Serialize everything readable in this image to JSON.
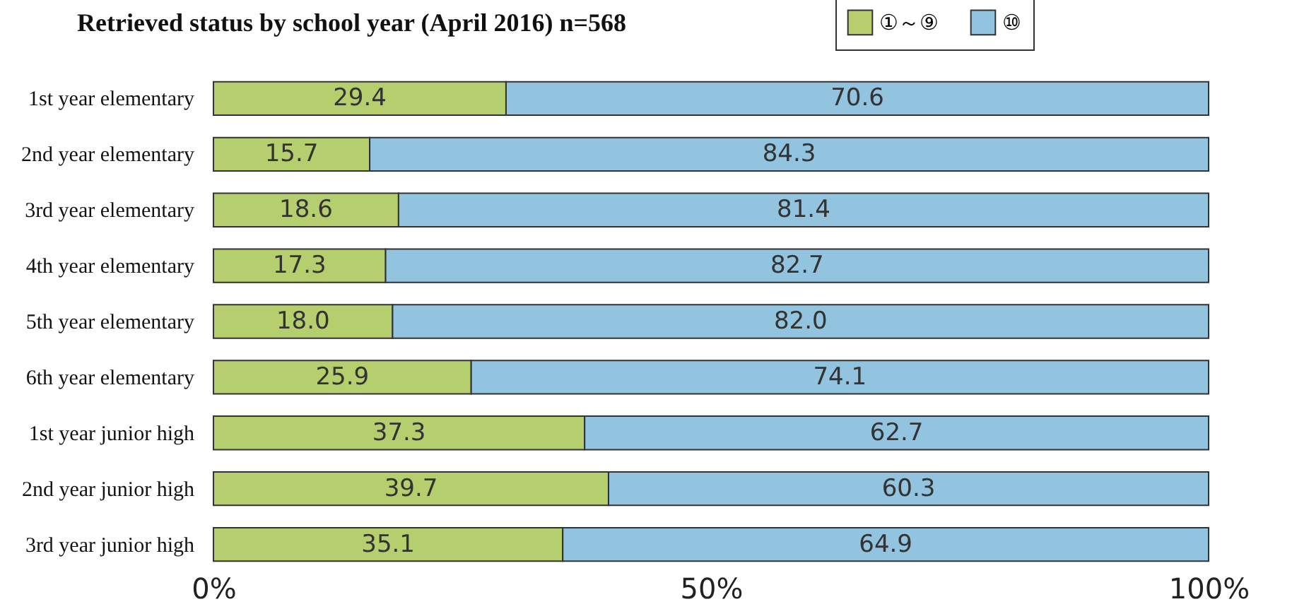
{
  "chart_data": {
    "type": "bar",
    "title": "Retrieved status by school year (April 2016) n=568",
    "orientation": "horizontal",
    "stacked": true,
    "legend": "top right",
    "grid": false,
    "categories": [
      "1st year elementary",
      "2nd year elementary",
      "3rd year elementary",
      "4th year elementary",
      "5th year elementary",
      "6th year elementary",
      "1st year junior high",
      "2nd year junior high",
      "3rd year junior high"
    ],
    "series": [
      {
        "name": "①～⑨",
        "color": "#b5cf6e",
        "values": [
          29.4,
          15.7,
          18.6,
          17.3,
          18.0,
          25.9,
          37.3,
          39.7,
          35.1
        ],
        "value_labels": [
          "29.4",
          "15.7",
          "18.6",
          "17.3",
          "18.0",
          "25.9",
          "37.3",
          "39.7",
          "35.1"
        ]
      },
      {
        "name": "⑩",
        "color": "#92c3df",
        "values": [
          70.6,
          84.3,
          81.4,
          82.7,
          82.0,
          74.1,
          62.7,
          60.3,
          64.9
        ],
        "value_labels": [
          "70.6",
          "84.3",
          "81.4",
          "82.7",
          "82.0",
          "74.1",
          "62.7",
          "60.3",
          "64.9"
        ]
      }
    ],
    "xlim": [
      0,
      100
    ],
    "xticks": [
      {
        "value": 0,
        "label": "0%"
      },
      {
        "value": 50,
        "label": "50%"
      },
      {
        "value": 100,
        "label": "100%"
      }
    ]
  }
}
